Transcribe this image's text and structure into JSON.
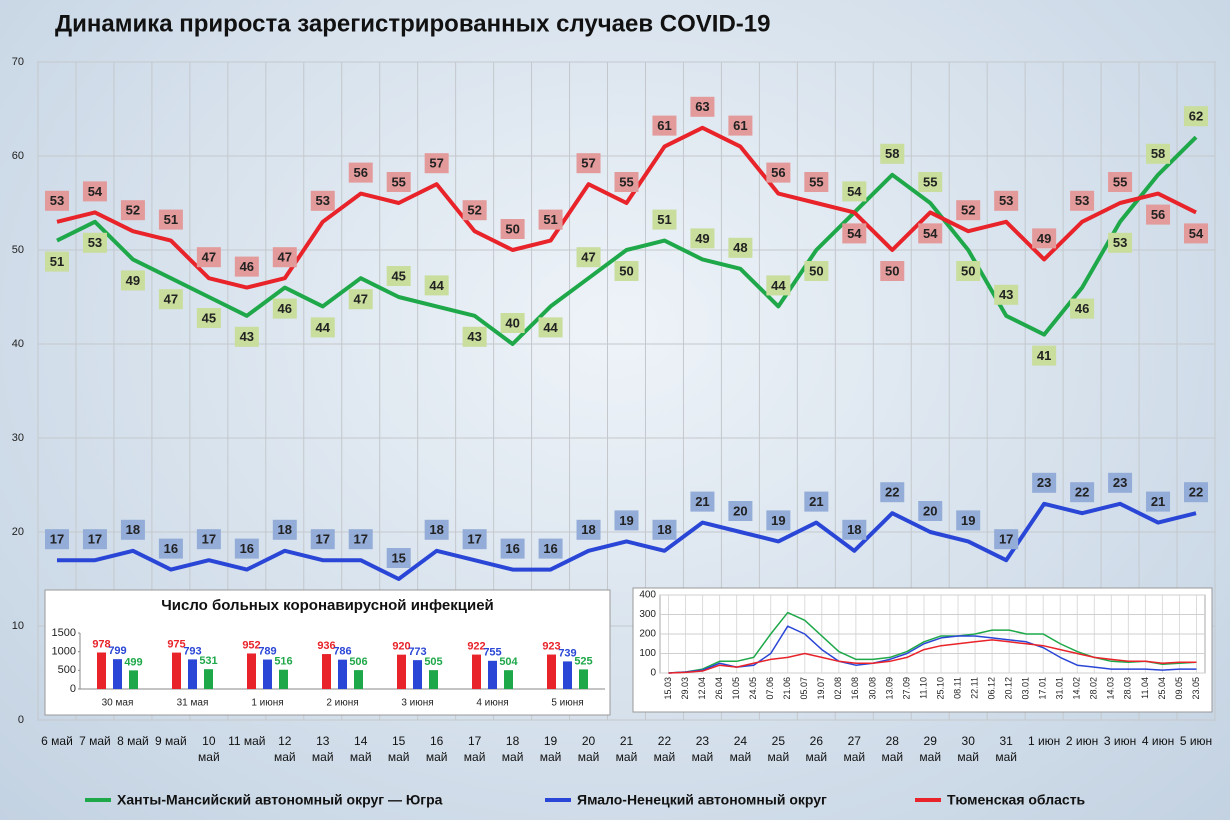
{
  "chart_data": [
    {
      "type": "line",
      "title": "Динамика прироста зарегистрированных случаев COVID-19",
      "categories": [
        "6 май",
        "7 май",
        "8 май",
        "9 май",
        "10 май",
        "11 май",
        "12 май",
        "13 май",
        "14 май",
        "15 май",
        "16 май",
        "17 май",
        "18 май",
        "19 май",
        "20 май",
        "21 май",
        "22 май",
        "23 май",
        "24 май",
        "25 май",
        "26 май",
        "27 май",
        "28 май",
        "29 май",
        "30 май",
        "31 май",
        "1 июн",
        "2 июн",
        "3 июн",
        "4 июн",
        "5 июн"
      ],
      "series": [
        {
          "name": "Ханты-Мансийский автономный округ — Югра",
          "color": "#1fa84a",
          "label_color": "#c9dd9c",
          "values": [
            51,
            53,
            49,
            47,
            45,
            43,
            46,
            44,
            47,
            45,
            44,
            43,
            40,
            44,
            47,
            50,
            51,
            49,
            48,
            44,
            50,
            54,
            58,
            55,
            50,
            43,
            41,
            46,
            53,
            58,
            62
          ]
        },
        {
          "name": "Ямало-Ненецкий автономный округ",
          "color": "#2a46d6",
          "label_color": "#93acd8",
          "values": [
            17,
            17,
            18,
            16,
            17,
            16,
            18,
            17,
            17,
            15,
            18,
            17,
            16,
            16,
            18,
            19,
            18,
            21,
            20,
            19,
            21,
            18,
            22,
            20,
            19,
            17,
            23,
            22,
            23,
            21,
            22
          ]
        },
        {
          "name": "Тюменская область",
          "color": "#e8232a",
          "label_color": "#e39a9a",
          "values": [
            53,
            54,
            52,
            51,
            47,
            46,
            47,
            53,
            56,
            55,
            57,
            52,
            50,
            51,
            57,
            55,
            61,
            63,
            61,
            56,
            55,
            54,
            50,
            54,
            52,
            53,
            49,
            53,
            55,
            56,
            54
          ]
        }
      ],
      "ylim": [
        0,
        70
      ],
      "yticks": [
        0,
        10,
        20,
        30,
        40,
        50,
        60,
        70
      ],
      "grid": true
    },
    {
      "type": "bar",
      "title": "Число больных коронавирусной инфекцией",
      "categories": [
        "30 мая",
        "31 мая",
        "1 июня",
        "2 июня",
        "3 июня",
        "4 июня",
        "5 июня"
      ],
      "series": [
        {
          "color": "#e8232a",
          "values": [
            978,
            975,
            952,
            936,
            920,
            922,
            923
          ]
        },
        {
          "color": "#2a46d6",
          "values": [
            799,
            793,
            789,
            786,
            773,
            755,
            739
          ]
        },
        {
          "color": "#1fa84a",
          "values": [
            499,
            531,
            516,
            506,
            505,
            504,
            525
          ]
        }
      ],
      "ylim": [
        0,
        1500
      ],
      "yticks": [
        0,
        500,
        1000,
        1500
      ],
      "grid": false
    },
    {
      "type": "line",
      "categories": [
        "15.03",
        "29.03",
        "12.04",
        "26.04",
        "10.05",
        "24.05",
        "07.06",
        "21.06",
        "05.07",
        "19.07",
        "02.08",
        "16.08",
        "30.08",
        "13.09",
        "27.09",
        "11.10",
        "25.10",
        "08.11",
        "22.11",
        "06.12",
        "20.12",
        "03.01",
        "17.01",
        "31.01",
        "14.02",
        "28.02",
        "14.03",
        "28.03",
        "11.04",
        "25.04",
        "09.05",
        "23.05"
      ],
      "series": [
        {
          "color": "#1fa84a",
          "values": [
            0,
            5,
            20,
            60,
            60,
            80,
            200,
            310,
            270,
            190,
            110,
            70,
            70,
            80,
            110,
            160,
            190,
            190,
            200,
            220,
            220,
            200,
            200,
            150,
            110,
            80,
            60,
            55,
            60,
            45,
            50,
            55
          ]
        },
        {
          "color": "#2a46d6",
          "values": [
            0,
            5,
            15,
            50,
            30,
            40,
            100,
            240,
            200,
            120,
            60,
            40,
            50,
            70,
            100,
            150,
            180,
            190,
            190,
            180,
            170,
            160,
            130,
            80,
            40,
            30,
            20,
            20,
            20,
            15,
            20,
            20
          ]
        },
        {
          "color": "#e8232a",
          "values": [
            0,
            3,
            10,
            40,
            30,
            50,
            70,
            80,
            100,
            80,
            60,
            50,
            50,
            60,
            80,
            120,
            140,
            150,
            160,
            170,
            160,
            150,
            140,
            120,
            100,
            80,
            70,
            60,
            60,
            50,
            55,
            55
          ]
        }
      ],
      "ylim": [
        0,
        400
      ],
      "yticks": [
        0,
        100,
        200,
        300,
        400
      ],
      "grid": true
    }
  ]
}
